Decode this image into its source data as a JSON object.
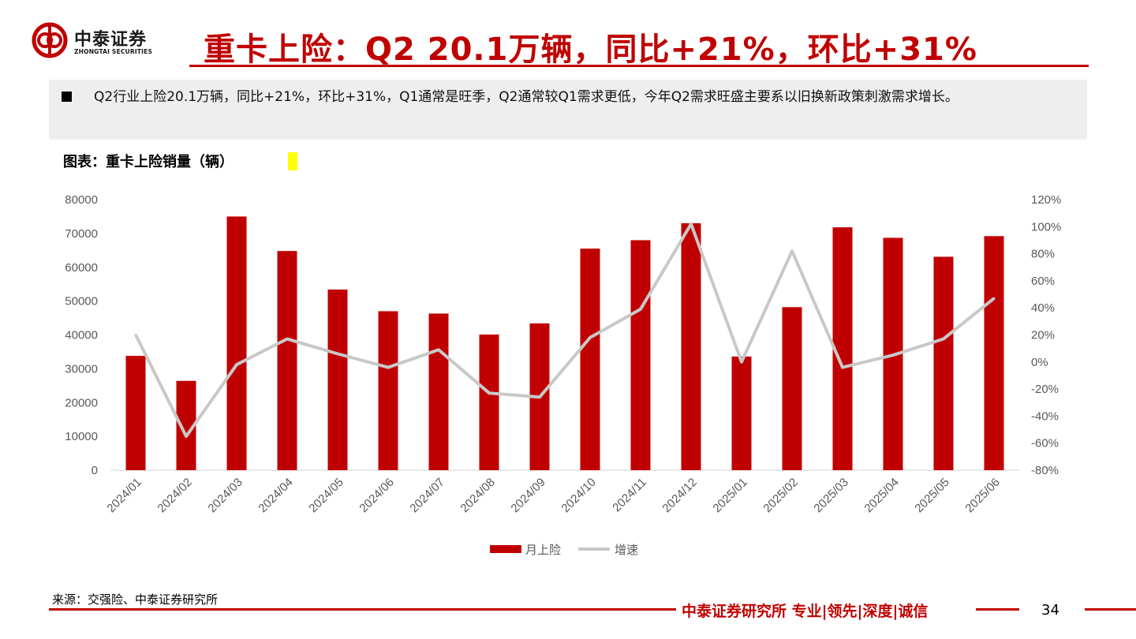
{
  "header": {
    "logo_cn": "中泰证券",
    "logo_en": "ZHONGTAI SECURITIES",
    "title": "重卡上险：Q2 20.1万辆，同比+21%，环比+31%"
  },
  "summary": {
    "text": "Q2行业上险20.1万辆，同比+21%，环比+31%，Q1通常是旺季，Q2通常较Q1需求更低，今年Q2需求旺盛主要系以旧换新政策刺激需求增长。"
  },
  "figure": {
    "caption": "图表：重卡上险销量（辆）"
  },
  "chart_data": {
    "type": "bar",
    "categories": [
      "2024/01",
      "2024/02",
      "2024/03",
      "2024/04",
      "2024/05",
      "2024/06",
      "2024/07",
      "2024/08",
      "2024/09",
      "2024/10",
      "2024/11",
      "2024/12",
      "2025/01",
      "2025/02",
      "2025/03",
      "2025/04",
      "2025/05",
      "2025/06"
    ],
    "series": [
      {
        "name": "月上险",
        "type": "bar",
        "axis": "left",
        "color": "#c00000",
        "values": [
          33800,
          26400,
          75000,
          64800,
          53400,
          47000,
          46300,
          40100,
          43400,
          65500,
          68000,
          73000,
          33600,
          48200,
          71800,
          68700,
          63100,
          69200
        ]
      },
      {
        "name": "增速",
        "type": "line",
        "axis": "right",
        "color": "#c8c8c8",
        "unit": "%",
        "values": [
          20,
          -55,
          -2,
          17,
          6,
          -4,
          9,
          -23,
          -26,
          18,
          39,
          102,
          0,
          82,
          -4,
          5,
          17,
          47
        ]
      }
    ],
    "y_left": {
      "min": 0,
      "max": 80000,
      "ticks": [
        "0",
        "10000",
        "20000",
        "30000",
        "40000",
        "50000",
        "60000",
        "70000",
        "80000"
      ]
    },
    "y_right": {
      "min": -80,
      "max": 120,
      "ticks": [
        "-80%",
        "-60%",
        "-40%",
        "-20%",
        "0%",
        "20%",
        "40%",
        "60%",
        "80%",
        "100%",
        "120%"
      ]
    },
    "legend_position": "bottom",
    "grid": false
  },
  "footer": {
    "source": "来源：交强险、中泰证券研究所",
    "brand": "中泰证券研究所 专业|领先|深度|诚信",
    "page": "34"
  }
}
